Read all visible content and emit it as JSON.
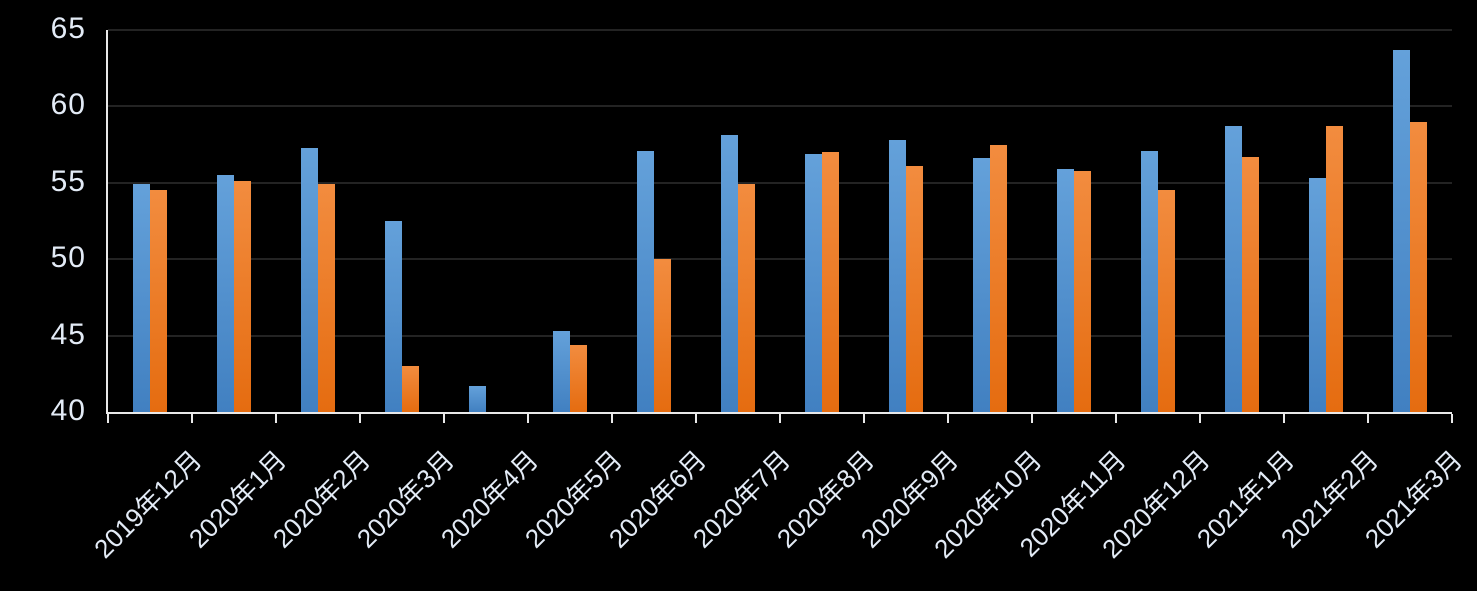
{
  "chart_data": {
    "type": "bar",
    "title": "",
    "xlabel": "",
    "ylabel": "",
    "categories": [
      "2019年12月",
      "2020年1月",
      "2020年2月",
      "2020年3月",
      "2020年4月",
      "2020年5月",
      "2020年6月",
      "2020年7月",
      "2020年8月",
      "2020年9月",
      "2020年10月",
      "2020年11月",
      "2020年12月",
      "2021年1月",
      "2021年2月",
      "2021年3月"
    ],
    "series": [
      {
        "name": "blue",
        "color_top": "#64A1DA",
        "color_bottom": "#4180C1",
        "values": [
          54.9,
          55.5,
          57.3,
          52.5,
          41.7,
          45.3,
          57.1,
          58.1,
          56.9,
          57.8,
          56.6,
          55.9,
          57.1,
          58.7,
          55.3,
          63.7
        ]
      },
      {
        "name": "orange",
        "color_top": "#F28C3F",
        "color_bottom": "#E56C10",
        "values": [
          54.5,
          55.1,
          54.9,
          43.0,
          null,
          44.4,
          50.0,
          54.9,
          57.0,
          56.1,
          57.5,
          55.8,
          54.5,
          56.7,
          58.7,
          59.0
        ]
      }
    ],
    "ylim": [
      40,
      65
    ],
    "yticks": [
      40,
      45,
      50,
      55,
      60,
      65
    ],
    "grid": true,
    "legend": "none",
    "colors": {
      "background": "#000000",
      "gridline": "#232323",
      "axis": "#e9e9e9",
      "tick_label": "#e3ebf6"
    }
  }
}
